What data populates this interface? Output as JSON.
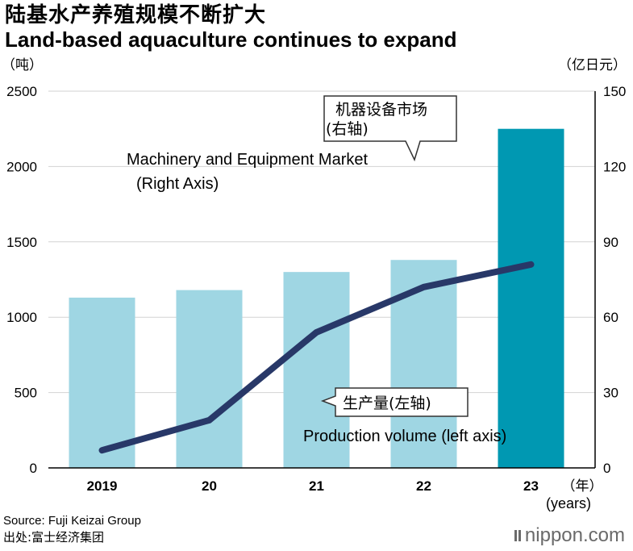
{
  "header": {
    "title_cn": "陆基水产养殖规模不断扩大",
    "title_en": "Land-based aquaculture continues to expand",
    "unit_left": "（吨）",
    "unit_right": "（亿日元）"
  },
  "footer": {
    "source_en": "Source: Fuji Keizai Group",
    "source_cn": "出处:富士经济集团",
    "logo": "nippon.com"
  },
  "colors": {
    "bar": "#9fd6e3",
    "bar_highlight": "#0098b2",
    "line": "#283868",
    "grid": "#d2d2d2"
  },
  "chart_data": {
    "type": "bar",
    "categories": [
      "2019",
      "20",
      "21",
      "22",
      "23"
    ],
    "x_unit_cn": "（年）",
    "x_unit_en": "(years)",
    "ylim_left": [
      0,
      2500
    ],
    "ylim_right": [
      0,
      150
    ],
    "yticks_left": [
      "0",
      "500",
      "1000",
      "1500",
      "2000",
      "2500"
    ],
    "yticks_right": [
      "0",
      "30",
      "60",
      "90",
      "120",
      "150"
    ],
    "series": [
      {
        "name": "生产量(左轴)",
        "name_en": "Production volume (left axis)",
        "type": "bar",
        "axis": "left",
        "values": [
          1130,
          1180,
          1300,
          1380,
          2250
        ]
      },
      {
        "name": "机器设备市场(右轴)",
        "name_en": "Machinery and Equipment Market (Right Axis)",
        "type": "line",
        "axis": "right",
        "values": [
          7,
          19,
          54,
          72,
          81
        ]
      }
    ],
    "annotations": {
      "line_label_cn_1": "机器设备市场",
      "line_label_cn_2": "(右轴)",
      "line_label_en_1": "Machinery and Equipment Market",
      "line_label_en_2": "(Right Axis)",
      "bar_label_cn": "生产量(左轴)",
      "bar_label_en": "Production volume (left axis)"
    },
    "grid": true
  }
}
